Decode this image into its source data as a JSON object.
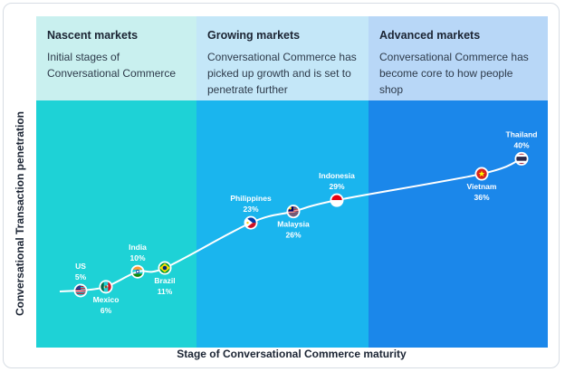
{
  "stages": [
    {
      "title": "Nascent markets",
      "description": "Initial stages of Conversational Commerce",
      "color": "#1ed2d6",
      "header_color": "#c9f0ef"
    },
    {
      "title": "Growing markets",
      "description": "Conversational Commerce has picked up growth and is set to penetrate further",
      "color": "#1ab5ee",
      "header_color": "#c4e7f8"
    },
    {
      "title": "Advanced markets",
      "description": "Conversational Commerce has become core to how people shop",
      "color": "#1b87ea",
      "header_color": "#b8d7f7"
    }
  ],
  "chart_data": {
    "type": "line",
    "title": "",
    "xlabel": "Stage of Conversational Commerce maturity",
    "ylabel": "Conversational Transaction penetration",
    "label_color": "#ffffff",
    "points": [
      {
        "country": "US",
        "value": 5,
        "label_pos": "above",
        "flag": "us-flag-icon"
      },
      {
        "country": "Mexico",
        "value": 6,
        "label_pos": "below",
        "flag": "mexico-flag-icon"
      },
      {
        "country": "India",
        "value": 10,
        "label_pos": "above",
        "flag": "india-flag-icon"
      },
      {
        "country": "Brazil",
        "value": 11,
        "label_pos": "below",
        "flag": "brazil-flag-icon"
      },
      {
        "country": "Philippines",
        "value": 23,
        "label_pos": "above",
        "flag": "philippines-flag-icon"
      },
      {
        "country": "Malaysia",
        "value": 26,
        "label_pos": "below",
        "flag": "malaysia-flag-icon"
      },
      {
        "country": "Indonesia",
        "value": 29,
        "label_pos": "above",
        "flag": "indonesia-flag-icon"
      },
      {
        "country": "Vietnam",
        "value": 36,
        "label_pos": "below",
        "flag": "vietnam-flag-icon"
      },
      {
        "country": "Thailand",
        "value": 40,
        "label_pos": "above",
        "flag": "thailand-flag-icon"
      }
    ]
  }
}
